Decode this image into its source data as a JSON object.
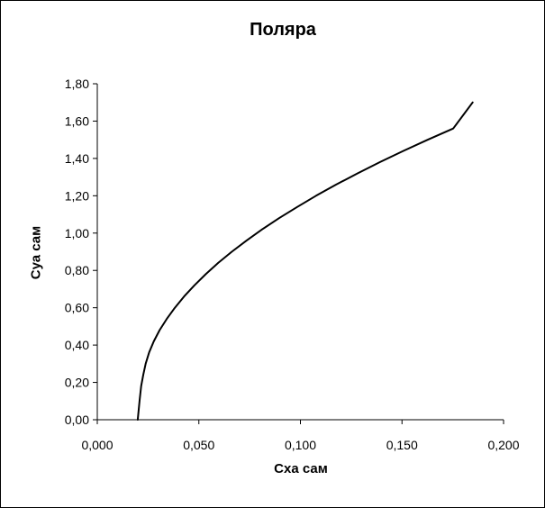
{
  "chart_data": {
    "type": "line",
    "title": "Поляра",
    "xlabel": "Сха сам",
    "ylabel": "Суа сам",
    "xlim": [
      0,
      0.2
    ],
    "ylim": [
      0,
      1.8
    ],
    "x_ticks": [
      "0,000",
      "0,050",
      "0,100",
      "0,150",
      "0,200"
    ],
    "y_ticks": [
      "0,00",
      "0,20",
      "0,40",
      "0,60",
      "0,80",
      "1,00",
      "1,20",
      "1,40",
      "1,60",
      "1,80"
    ],
    "grid": false,
    "legend": false,
    "series": [
      {
        "color": "#000000",
        "x": [
          0.0199,
          0.0208,
          0.0216,
          0.0226,
          0.0238,
          0.0255,
          0.0278,
          0.0307,
          0.0342,
          0.0382,
          0.0427,
          0.0478,
          0.0534,
          0.0595,
          0.0662,
          0.0735,
          0.0812,
          0.0895,
          0.0984,
          0.1077,
          0.1176,
          0.1281,
          0.1391,
          0.1506,
          0.1626,
          0.1752,
          0.1848
        ],
        "y": [
          0.0,
          0.1,
          0.18,
          0.24,
          0.3,
          0.36,
          0.42,
          0.48,
          0.54,
          0.6,
          0.66,
          0.72,
          0.78,
          0.84,
          0.9,
          0.96,
          1.02,
          1.08,
          1.14,
          1.2,
          1.26,
          1.32,
          1.38,
          1.44,
          1.5,
          1.56,
          1.7
        ]
      }
    ]
  }
}
